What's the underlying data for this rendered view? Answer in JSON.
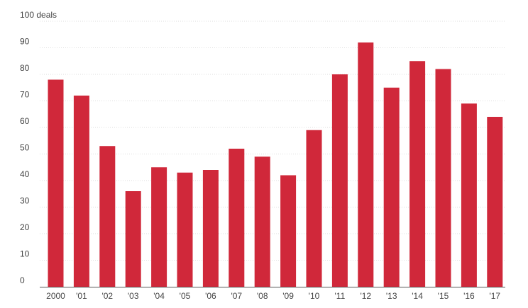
{
  "chart_data": {
    "type": "bar",
    "title": "",
    "xlabel": "",
    "ylabel": "",
    "categories": [
      "2000",
      "'01",
      "'02",
      "'03",
      "'04",
      "'05",
      "'06",
      "'07",
      "'08",
      "'09",
      "'10",
      "'11",
      "'12",
      "'13",
      "'14",
      "'15",
      "'16",
      "'17"
    ],
    "values": [
      78,
      72,
      53,
      36,
      45,
      43,
      44,
      52,
      49,
      42,
      59,
      80,
      92,
      75,
      85,
      82,
      69,
      64
    ],
    "ylim": [
      0,
      100
    ],
    "y_ticks": [
      0,
      10,
      20,
      30,
      40,
      50,
      60,
      70,
      80,
      90,
      100
    ],
    "y_tick_labels": [
      "0",
      "10",
      "20",
      "30",
      "40",
      "50",
      "60",
      "70",
      "80",
      "90",
      "100 deals"
    ],
    "grid": true,
    "legend": "none",
    "bar_color": "#d0283a"
  }
}
